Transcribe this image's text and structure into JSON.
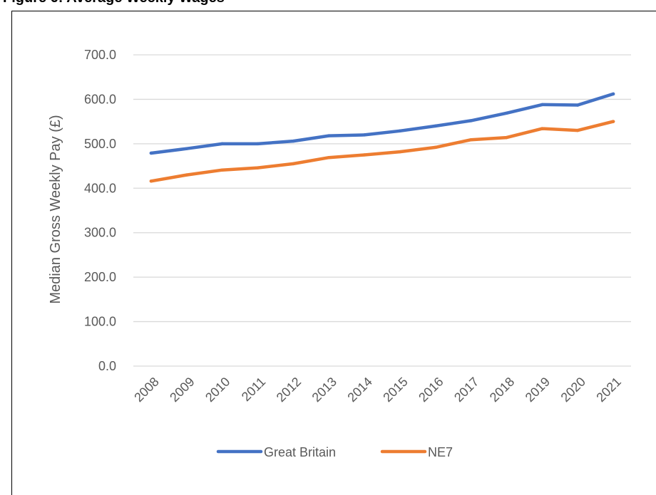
{
  "caption": "Figure 6: Average Weekly Wages",
  "chart_data": {
    "type": "line",
    "title": "",
    "xlabel": "",
    "ylabel": "Median Gross Weekly Pay (£)",
    "categories": [
      "2008",
      "2009",
      "2010",
      "2011",
      "2012",
      "2013",
      "2014",
      "2015",
      "2016",
      "2017",
      "2018",
      "2019",
      "2020",
      "2021"
    ],
    "y_tick_labels": [
      "0.0",
      "100.0",
      "200.0",
      "300.0",
      "400.0",
      "500.0",
      "600.0",
      "700.0"
    ],
    "ylim": [
      0,
      700
    ],
    "grid": true,
    "legend_position": "bottom",
    "series": [
      {
        "name": "Great Britain",
        "color": "#4472C4",
        "values": [
          479,
          489,
          500,
          500,
          506,
          518,
          520,
          529,
          540,
          552,
          569,
          588,
          587,
          612
        ]
      },
      {
        "name": "NE7",
        "color": "#ED7D31",
        "values": [
          416,
          430,
          441,
          446,
          455,
          469,
          475,
          482,
          492,
          509,
          514,
          534,
          530,
          550
        ]
      }
    ]
  }
}
